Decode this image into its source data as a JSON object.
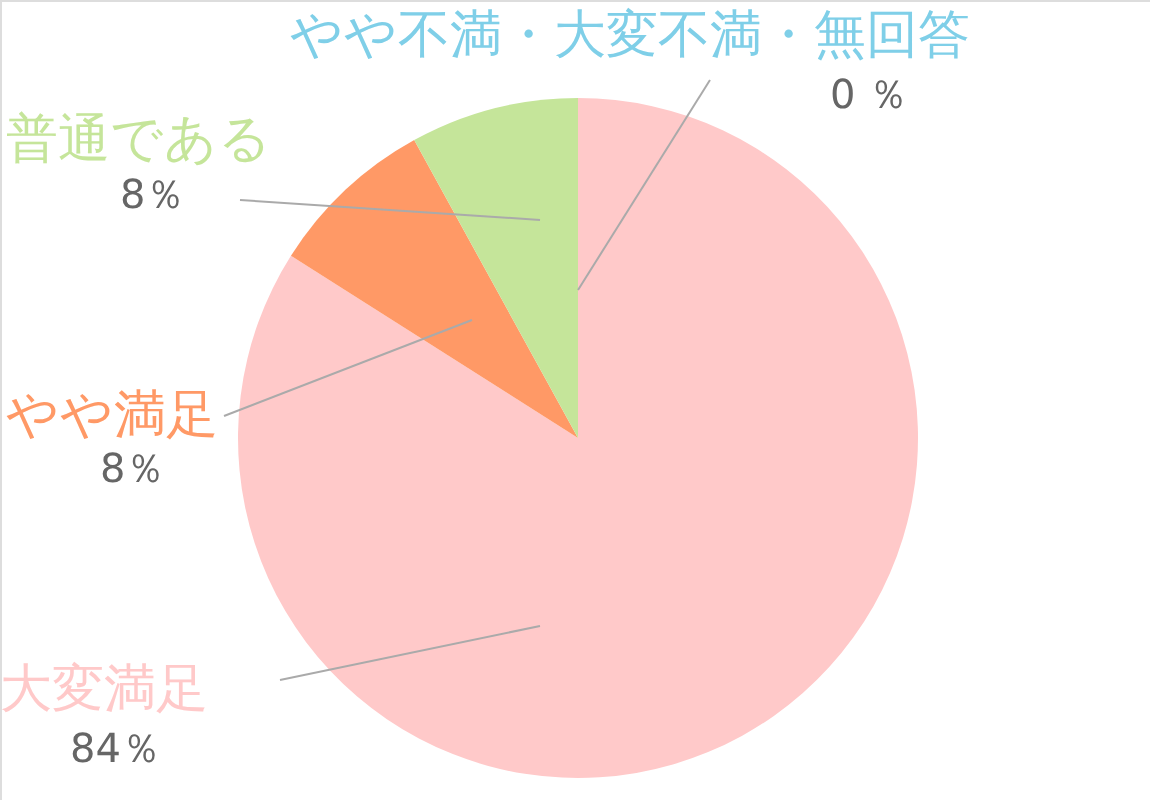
{
  "chart_data": {
    "type": "pie",
    "categories": [
      "大変満足",
      "やや満足",
      "普通である",
      "やや不満・大変不満・無回答"
    ],
    "values": [
      84,
      8,
      8,
      0
    ],
    "colors": [
      "#ffc9c9",
      "#ff9966",
      "#c5e59a",
      "#7fcfe8"
    ],
    "value_labels": [
      "84％",
      "8％",
      "8％",
      "0 ％"
    ]
  }
}
